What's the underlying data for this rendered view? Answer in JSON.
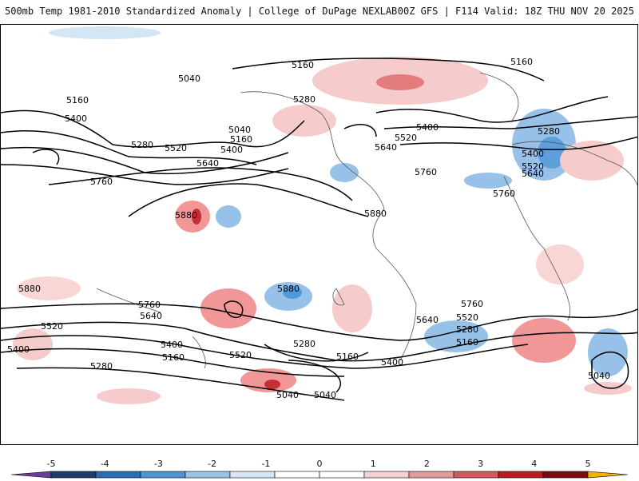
{
  "header": {
    "title_left": "500mb Temp 1981-2010 Standardized Anomaly | College of DuPage NEXLAB",
    "title_right": "00Z GFS | F114 Valid: 18Z THU NOV 20 2025"
  },
  "map": {
    "contour_labels": [
      "5160",
      "5040",
      "5160",
      "5400",
      "5280",
      "5520",
      "5400",
      "5640",
      "5760",
      "5880",
      "5040",
      "5160",
      "5280",
      "5400",
      "5520",
      "5640",
      "5760",
      "5880",
      "5160",
      "5280",
      "5400",
      "5520",
      "5640",
      "5760",
      "5880",
      "5760",
      "5640",
      "5520",
      "5400",
      "5280",
      "5160",
      "5040",
      "5040",
      "5160",
      "5280",
      "5400",
      "5520",
      "5640",
      "5760",
      "5880",
      "5280",
      "5400",
      "5520",
      "5160",
      "5040"
    ],
    "colors": {
      "positive_strong": "#c01820",
      "positive": "#f08c8c",
      "positive_light": "#f8d2d2",
      "negative_light": "#cfe2f3",
      "negative": "#8cbbe6",
      "negative_strong": "#3a8fd6",
      "land_outline": "#555555",
      "contour": "#000000"
    }
  },
  "colorbar": {
    "ticks": [
      "-5",
      "-4",
      "-3",
      "-2",
      "-1",
      "0",
      "1",
      "2",
      "3",
      "4",
      "5"
    ],
    "colors": [
      "#6a3d9a",
      "#1f3a6e",
      "#2b6cb8",
      "#4d94d6",
      "#9cc3e6",
      "#d7e7f5",
      "#ffffff",
      "#ffffff",
      "#f5d0d0",
      "#e59a9a",
      "#d35a5a",
      "#b81d22",
      "#7a0d12",
      "#f0b400"
    ]
  }
}
